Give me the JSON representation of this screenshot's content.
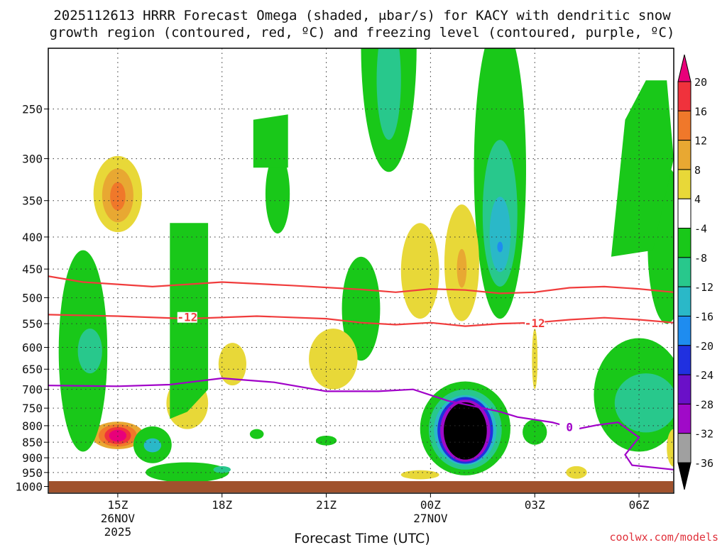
{
  "chart_data": {
    "type": "heatmap",
    "title_line1": "2025112613 HRRR Forecast Omega (shaded, μbar/s) for KACY with dendritic snow",
    "title_line2": "growth region (contoured, red, ºC) and freezing level (contoured, purple, ºC)",
    "xlabel": "Forecast Time (UTC)",
    "credit": "coolwx.com/models",
    "x_ticks": [
      {
        "hour": 15,
        "label": "15Z",
        "sub1": "26NOV",
        "sub2": "2025"
      },
      {
        "hour": 18,
        "label": "18Z",
        "sub1": "",
        "sub2": ""
      },
      {
        "hour": 21,
        "label": "21Z",
        "sub1": "",
        "sub2": ""
      },
      {
        "hour": 24,
        "label": "00Z",
        "sub1": "27NOV",
        "sub2": ""
      },
      {
        "hour": 27,
        "label": "03Z",
        "sub1": "",
        "sub2": ""
      },
      {
        "hour": 30,
        "label": "06Z",
        "sub1": "",
        "sub2": ""
      }
    ],
    "x_range_hours": [
      13.0,
      31.0
    ],
    "y_ticks": [
      "250",
      "300",
      "350",
      "400",
      "450",
      "500",
      "550",
      "600",
      "650",
      "700",
      "750",
      "800",
      "850",
      "900",
      "950",
      "1000"
    ],
    "y_range_hpa": [
      200,
      1025
    ],
    "colorbar": {
      "labels": [
        "20",
        "16",
        "12",
        "8",
        "4",
        "-4",
        "-8",
        "-12",
        "-16",
        "-20",
        "-24",
        "-28",
        "-32",
        "-36"
      ],
      "colors": [
        "#e8007a",
        "#f0323c",
        "#f0782a",
        "#e8a832",
        "#e8d838",
        "#ffffff",
        "#19c819",
        "#28c88c",
        "#2ab8c8",
        "#1e8cf0",
        "#2030e0",
        "#6a10c8",
        "#a00ac8",
        "#a0a0a0",
        "#000000"
      ]
    },
    "contours": {
      "dgz_label": "-12",
      "freezing_label": "0",
      "dgz_upper": [
        [
          13.0,
          462
        ],
        [
          14.0,
          472
        ],
        [
          16.0,
          480
        ],
        [
          18.0,
          472
        ],
        [
          20.0,
          478
        ],
        [
          22.0,
          485
        ],
        [
          23.0,
          490
        ],
        [
          24.0,
          484
        ],
        [
          25.0,
          486
        ],
        [
          26.0,
          492
        ],
        [
          27.0,
          490
        ],
        [
          28.0,
          482
        ],
        [
          29.0,
          480
        ],
        [
          30.0,
          484
        ],
        [
          31.0,
          490
        ]
      ],
      "dgz_lower": [
        [
          13.0,
          532
        ],
        [
          15.0,
          535
        ],
        [
          17.0,
          540
        ],
        [
          19.0,
          535
        ],
        [
          21.0,
          540
        ],
        [
          22.0,
          548
        ],
        [
          23.0,
          552
        ],
        [
          24.0,
          548
        ],
        [
          25.0,
          555
        ],
        [
          26.0,
          550
        ],
        [
          27.0,
          548
        ],
        [
          28.0,
          542
        ],
        [
          29.0,
          538
        ],
        [
          30.0,
          542
        ],
        [
          31.0,
          548
        ]
      ],
      "freezing": [
        [
          13.0,
          690
        ],
        [
          15.0,
          692
        ],
        [
          16.5,
          688
        ],
        [
          18.0,
          672
        ],
        [
          19.5,
          682
        ],
        [
          21.0,
          705
        ],
        [
          22.5,
          705
        ],
        [
          23.5,
          700
        ],
        [
          24.5,
          730
        ],
        [
          26.0,
          760
        ],
        [
          26.5,
          775
        ],
        [
          27.5,
          790
        ],
        [
          28.2,
          810
        ],
        [
          28.8,
          798
        ],
        [
          29.4,
          790
        ],
        [
          29.8,
          820
        ],
        [
          30.0,
          835
        ],
        [
          29.6,
          890
        ],
        [
          29.8,
          925
        ],
        [
          31.0,
          940
        ]
      ]
    },
    "omega_features": [
      {
        "shape": "ellipse",
        "cx": 15.0,
        "cy": 345,
        "rx": 0.7,
        "ry": 48,
        "level": 4
      },
      {
        "shape": "ellipse",
        "cx": 15.0,
        "cy": 345,
        "rx": 0.45,
        "ry": 34,
        "level": 8
      },
      {
        "shape": "ellipse",
        "cx": 15.0,
        "cy": 345,
        "rx": 0.22,
        "ry": 18,
        "level": 12
      },
      {
        "shape": "ellipse",
        "cx": 15.0,
        "cy": 830,
        "rx": 0.75,
        "ry": 42,
        "level": 8
      },
      {
        "shape": "ellipse",
        "cx": 15.0,
        "cy": 830,
        "rx": 0.55,
        "ry": 34,
        "level": 12
      },
      {
        "shape": "ellipse",
        "cx": 15.0,
        "cy": 830,
        "rx": 0.38,
        "ry": 26,
        "level": 16
      },
      {
        "shape": "ellipse",
        "cx": 15.0,
        "cy": 830,
        "rx": 0.25,
        "ry": 18,
        "level": 20
      },
      {
        "shape": "ellipse",
        "cx": 16.0,
        "cy": 860,
        "rx": 0.55,
        "ry": 58,
        "level": -8
      },
      {
        "shape": "ellipse",
        "cx": 16.0,
        "cy": 860,
        "rx": 0.25,
        "ry": 22,
        "level": -16
      },
      {
        "shape": "ellipse",
        "cx": 25.0,
        "cy": 820,
        "rx": 1.3,
        "ry": 140,
        "level": -8
      },
      {
        "shape": "ellipse",
        "cx": 25.0,
        "cy": 820,
        "rx": 1.05,
        "ry": 120,
        "level": -12
      },
      {
        "shape": "ellipse",
        "cx": 25.0,
        "cy": 820,
        "rx": 0.9,
        "ry": 105,
        "level": -16
      },
      {
        "shape": "ellipse",
        "cx": 25.0,
        "cy": 820,
        "rx": 0.8,
        "ry": 100,
        "level": -24
      },
      {
        "shape": "ellipse",
        "cx": 25.0,
        "cy": 820,
        "rx": 0.72,
        "ry": 93,
        "level": -32
      },
      {
        "shape": "ellipse",
        "cx": 25.0,
        "cy": 820,
        "rx": 0.62,
        "ry": 86,
        "level": -36
      },
      {
        "shape": "ellipse",
        "cx": 22.8,
        "cy": 220,
        "rx": 0.8,
        "ry": 95,
        "level": -8
      },
      {
        "shape": "ellipse",
        "cx": 22.8,
        "cy": 230,
        "rx": 0.35,
        "ry": 50,
        "level": -12
      },
      {
        "shape": "ellipse",
        "cx": 26.0,
        "cy": 360,
        "rx": 0.75,
        "ry": 180,
        "level": -8
      },
      {
        "shape": "ellipse",
        "cx": 26.0,
        "cy": 380,
        "rx": 0.5,
        "ry": 100,
        "level": -12
      },
      {
        "shape": "ellipse",
        "cx": 26.0,
        "cy": 400,
        "rx": 0.3,
        "ry": 55,
        "level": -16
      },
      {
        "shape": "ellipse",
        "cx": 26.0,
        "cy": 415,
        "rx": 0.08,
        "ry": 8,
        "level": -20
      },
      {
        "shape": "ellipse",
        "cx": 23.7,
        "cy": 460,
        "rx": 0.55,
        "ry": 80,
        "level": 4
      },
      {
        "shape": "ellipse",
        "cx": 24.9,
        "cy": 450,
        "rx": 0.5,
        "ry": 95,
        "level": 4
      },
      {
        "shape": "ellipse",
        "cx": 24.9,
        "cy": 450,
        "rx": 0.14,
        "ry": 32,
        "level": 8
      },
      {
        "shape": "ellipse",
        "cx": 22.0,
        "cy": 530,
        "rx": 0.55,
        "ry": 100,
        "level": -8
      },
      {
        "shape": "ellipse",
        "cx": 21.2,
        "cy": 630,
        "rx": 0.7,
        "ry": 70,
        "level": 4
      },
      {
        "shape": "ellipse",
        "cx": 19.6,
        "cy": 345,
        "rx": 0.35,
        "ry": 50,
        "level": -8
      },
      {
        "shape": "ellipse",
        "cx": 30.8,
        "cy": 430,
        "rx": 0.55,
        "ry": 120,
        "level": -8
      },
      {
        "shape": "ellipse",
        "cx": 27.0,
        "cy": 820,
        "rx": 0.35,
        "ry": 38,
        "level": -8
      },
      {
        "shape": "ellipse",
        "cx": 28.2,
        "cy": 950,
        "rx": 0.3,
        "ry": 22,
        "level": 4
      },
      {
        "shape": "ellipse",
        "cx": 17.0,
        "cy": 740,
        "rx": 0.6,
        "ry": 70,
        "level": 4
      },
      {
        "shape": "ellipse",
        "cx": 18.3,
        "cy": 640,
        "rx": 0.4,
        "ry": 50,
        "level": 4
      },
      {
        "shape": "ellipse",
        "cx": 27.0,
        "cy": 630,
        "rx": 0.08,
        "ry": 70,
        "level": 4
      },
      {
        "shape": "ellipse",
        "cx": 19.0,
        "cy": 825,
        "rx": 0.2,
        "ry": 15,
        "level": -8
      },
      {
        "shape": "ellipse",
        "cx": 21.0,
        "cy": 845,
        "rx": 0.3,
        "ry": 15,
        "level": -8
      },
      {
        "shape": "ellipse",
        "cx": 23.7,
        "cy": 958,
        "rx": 0.55,
        "ry": 16,
        "level": 4
      },
      {
        "shape": "ellipse",
        "cx": 14.0,
        "cy": 650,
        "rx": 0.7,
        "ry": 230,
        "level": -8
      },
      {
        "shape": "ellipse",
        "cx": 14.2,
        "cy": 610,
        "rx": 0.35,
        "ry": 50,
        "level": -12
      },
      {
        "shape": "ellipse",
        "cx": 17.0,
        "cy": 950,
        "rx": 1.2,
        "ry": 35,
        "level": -8
      },
      {
        "shape": "ellipse",
        "cx": 18.0,
        "cy": 940,
        "rx": 0.25,
        "ry": 12,
        "level": -12
      },
      {
        "shape": "ellipse",
        "cx": 30.0,
        "cy": 730,
        "rx": 1.3,
        "ry": 150,
        "level": -8
      },
      {
        "shape": "ellipse",
        "cx": 30.2,
        "cy": 740,
        "rx": 0.9,
        "ry": 80,
        "level": -12
      },
      {
        "shape": "ellipse",
        "cx": 31.0,
        "cy": 870,
        "rx": 0.2,
        "ry": 60,
        "level": 4
      },
      {
        "shape": "poly",
        "level": -8,
        "pts": [
          [
            16.5,
            380
          ],
          [
            17.6,
            380
          ],
          [
            17.6,
            700
          ],
          [
            17.0,
            760
          ],
          [
            16.5,
            780
          ]
        ]
      },
      {
        "shape": "poly",
        "level": -8,
        "pts": [
          [
            18.9,
            260
          ],
          [
            19.9,
            255
          ],
          [
            19.9,
            310
          ],
          [
            18.9,
            310
          ]
        ]
      },
      {
        "shape": "poly",
        "level": -8,
        "pts": [
          [
            29.6,
            260
          ],
          [
            30.2,
            225
          ],
          [
            30.8,
            225
          ],
          [
            31.0,
            300
          ],
          [
            30.4,
            420
          ],
          [
            29.2,
            430
          ]
        ]
      }
    ]
  }
}
